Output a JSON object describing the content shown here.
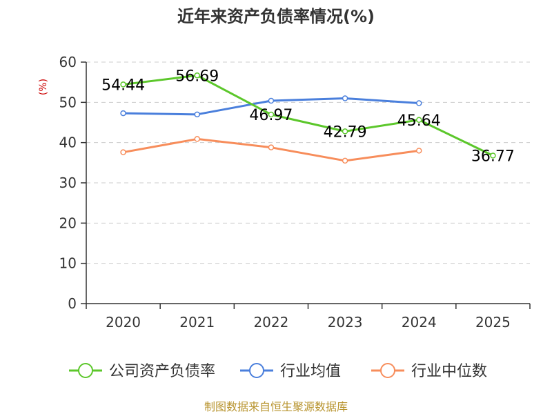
{
  "chart_data": {
    "type": "line",
    "title": "近年来资产负债率情况(%)",
    "ylabel": "(%)",
    "xlabel": "",
    "categories": [
      "2020",
      "2021",
      "2022",
      "2023",
      "2024",
      "2025"
    ],
    "ylim": [
      0,
      60
    ],
    "yticks": [
      0,
      10,
      20,
      30,
      40,
      50,
      60
    ],
    "grid": true,
    "legend_position": "bottom",
    "series": [
      {
        "name": "公司资产负债率",
        "color": "#5cc72b",
        "values": [
          54.44,
          56.69,
          46.97,
          42.79,
          45.64,
          36.77
        ],
        "labels": [
          "54.44",
          "56.69",
          "46.97",
          "42.79",
          "45.64",
          "36.77"
        ]
      },
      {
        "name": "行业均值",
        "color": "#4a7fdc",
        "values": [
          47.3,
          47.0,
          50.4,
          51.0,
          49.8,
          null
        ]
      },
      {
        "name": "行业中位数",
        "color": "#f78d5b",
        "values": [
          37.6,
          40.9,
          38.8,
          35.5,
          38.0,
          null
        ]
      }
    ]
  },
  "colors": {
    "ylabel": "#cc0000",
    "source": "#b8942f"
  },
  "source_text": "制图数据来自恒生聚源数据库"
}
